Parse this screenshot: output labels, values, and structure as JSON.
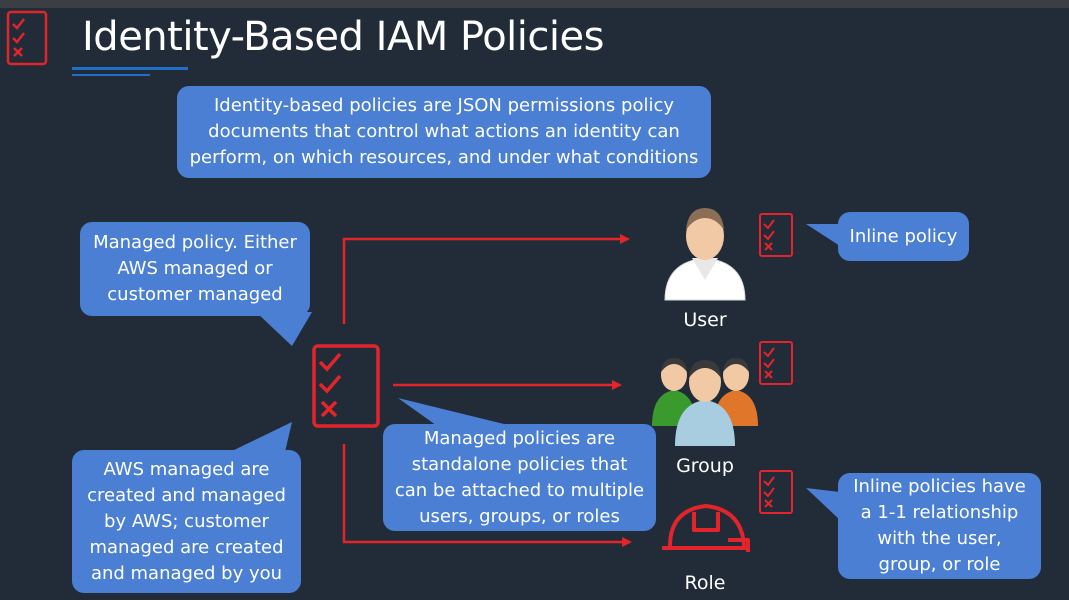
{
  "slide": {
    "title": "Identity-Based IAM Policies"
  },
  "callouts": {
    "definition": "Identity-based policies are JSON permissions policy documents that control what actions an identity can perform, on which resources, and under what conditions",
    "managed_policy": "Managed policy. Either AWS managed or customer managed",
    "aws_managed": "AWS managed are created and managed by AWS; customer managed are created and managed by you",
    "standalone": "Managed policies are standalone policies that can be attached to multiple users, groups, or roles",
    "inline_policy": "Inline policy",
    "inline_relationship": "Inline policies have a 1-1 relationship with the user, group, or role"
  },
  "identities": {
    "user": "User",
    "group": "Group",
    "role": "Role"
  },
  "colors": {
    "background": "#222c38",
    "callout": "#4a7fd4",
    "arrow": "#e3242b",
    "accent_underline": "#1f6fc7"
  },
  "icons": [
    "policy-document-icon",
    "user-icon",
    "group-icon",
    "role-hardhat-icon"
  ]
}
